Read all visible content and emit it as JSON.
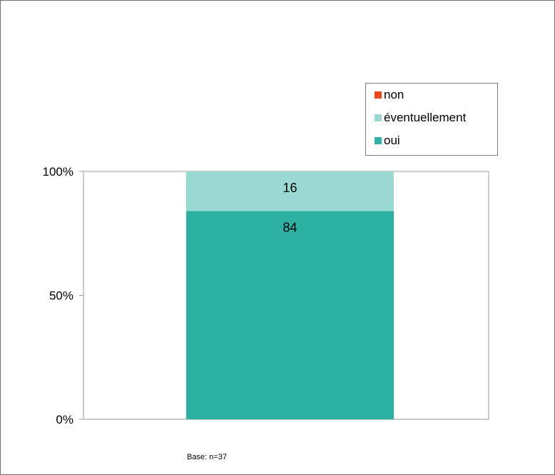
{
  "chart_data": {
    "type": "bar",
    "stacked": true,
    "categories": [
      ""
    ],
    "series": [
      {
        "name": "oui",
        "values": [
          84
        ],
        "color": "#2fb0a5"
      },
      {
        "name": "éventuellement",
        "values": [
          16
        ],
        "color": "#9ad9d2"
      },
      {
        "name": "non",
        "values": [
          0
        ],
        "color": "#e8481e"
      }
    ],
    "data_labels": [
      "84",
      "16"
    ],
    "y_ticks": [
      "0%",
      "50%",
      "100%"
    ],
    "ylim": [
      0,
      100
    ],
    "grid": false,
    "legend_position": "top-right",
    "legend_order": [
      "non",
      "éventuellement",
      "oui"
    ]
  },
  "footnote": "Base: n=37"
}
